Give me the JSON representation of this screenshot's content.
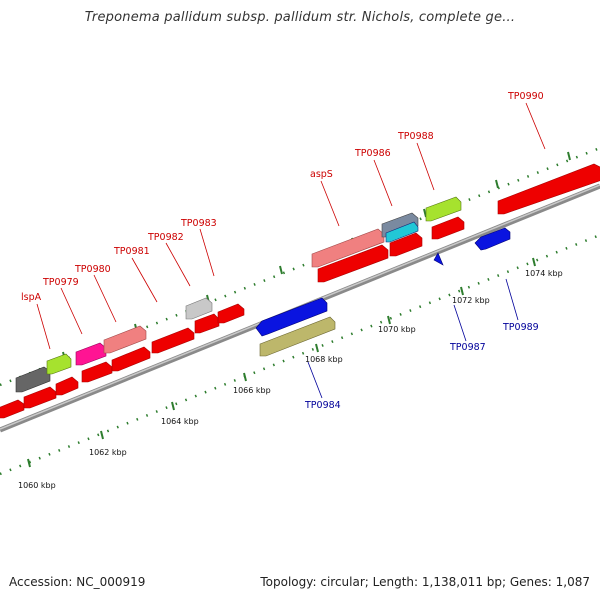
{
  "title": "Treponema pallidum subsp. pallidum str. Nichols, complete ge...",
  "footer": {
    "accession": "Accession: NC_000919",
    "summary": "Topology: circular; Length: 1,138,011 bp; Genes: 1,087"
  },
  "colors": {
    "top_label": "#cc0000",
    "bottom_label": "#00009a",
    "backbone": "#888888",
    "tick": "#2e7d2e"
  },
  "scale_labels": [
    "1060 kbp",
    "1062 kbp",
    "1064 kbp",
    "1066 kbp",
    "1068 kbp",
    "1070 kbp",
    "1072 kbp",
    "1074 kbp"
  ],
  "top_labels": [
    "lspA",
    "TP0979",
    "TP0980",
    "TP0981",
    "TP0982",
    "TP0983",
    "aspS",
    "TP0986",
    "TP0988",
    "TP0990"
  ],
  "bottom_labels": [
    "TP0984",
    "TP0987",
    "TP0989"
  ]
}
